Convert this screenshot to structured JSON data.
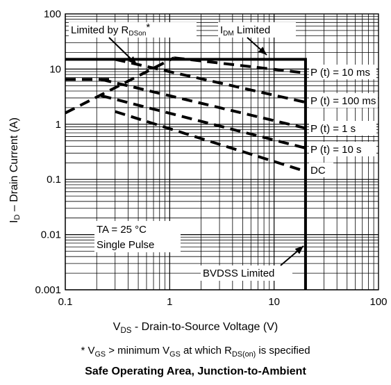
{
  "chart_data": {
    "type": "line",
    "title": "Safe Operating Area, Junction-to-Ambient",
    "xlabel_main": "V",
    "xlabel_sub": "DS",
    "xlabel_rest": " -  Drain-to-Source Voltage (V)",
    "ylabel_main": "I",
    "ylabel_sub": "D",
    "ylabel_rest": " – Drain Current (A)",
    "x_scale": "log",
    "y_scale": "log",
    "xlim": [
      0.1,
      100
    ],
    "ylim": [
      0.001,
      100
    ],
    "x_ticks": [
      0.1,
      1,
      10,
      100
    ],
    "x_tick_labels": [
      "0.1",
      "1",
      "10",
      "100"
    ],
    "y_ticks": [
      0.001,
      0.01,
      0.1,
      1,
      10,
      100
    ],
    "y_tick_labels": [
      "0.001",
      "0.01",
      "0.1",
      "1",
      "10",
      "100"
    ],
    "grid": true,
    "solid_boundary": {
      "x": [
        0.1,
        20,
        20
      ],
      "y": [
        15,
        15,
        0.001
      ]
    },
    "rdson_line": {
      "x": [
        0.1,
        1.1
      ],
      "y": [
        1.6,
        16
      ]
    },
    "rdson_flat": {
      "x": [
        0.1,
        0.3
      ],
      "y": [
        6.5,
        6.5
      ]
    },
    "series": [
      {
        "name": "P (t) = 10 ms",
        "x": [
          1.1,
          20
        ],
        "y": [
          16,
          8.5
        ]
      },
      {
        "name": "P (t) = 100 ms",
        "x": [
          0.3,
          20
        ],
        "y": [
          15,
          2.5
        ]
      },
      {
        "name": "P (t) = 1 s",
        "x": [
          0.22,
          20
        ],
        "y": [
          6.5,
          0.85
        ]
      },
      {
        "name": "P (t) = 10 s",
        "x": [
          0.22,
          20
        ],
        "y": [
          3.3,
          0.37
        ]
      },
      {
        "name": "DC",
        "x": [
          0.3,
          20
        ],
        "y": [
          1.7,
          0.14
        ]
      }
    ],
    "annotations": {
      "rdson_main": "Limited by R",
      "rdson_sub": "DSon",
      "rdson_star": "*",
      "idm_main": "I",
      "idm_sub": "DM",
      "idm_rest": " Limited",
      "bvdss": "BVDSS Limited",
      "temp": "TA = 25 °C",
      "pulse": "Single Pulse"
    },
    "footnote": {
      "p1": "* V",
      "s1": "GS",
      "p2": "  > minimum V",
      "s2": "GS",
      "p3": " at which R",
      "s3": "DS(on)",
      "p4": " is specified"
    }
  }
}
